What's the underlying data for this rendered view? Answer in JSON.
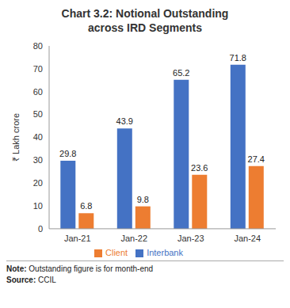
{
  "chart_data": {
    "type": "bar",
    "title": "Chart 3.2: Notional Outstanding across IRD Segments",
    "y_label": "₹ Lakh crore",
    "categories": [
      "Jan-21",
      "Jan-22",
      "Jan-23",
      "Jan-24"
    ],
    "series": [
      {
        "name": "Interbank",
        "color": "#4472c4",
        "values": [
          29.8,
          43.9,
          65.2,
          71.8
        ]
      },
      {
        "name": "Client",
        "color": "#ed7d31",
        "values": [
          6.8,
          9.8,
          23.6,
          27.4
        ]
      }
    ],
    "ylim": [
      0,
      80
    ],
    "yticks": [
      0,
      10,
      20,
      30,
      40,
      50,
      60,
      70,
      80
    ],
    "grid": false,
    "legend": "bottom",
    "data_labels": true,
    "annotations": [
      "Note: Outstanding figure is for month-end",
      "Source: CCIL"
    ]
  }
}
